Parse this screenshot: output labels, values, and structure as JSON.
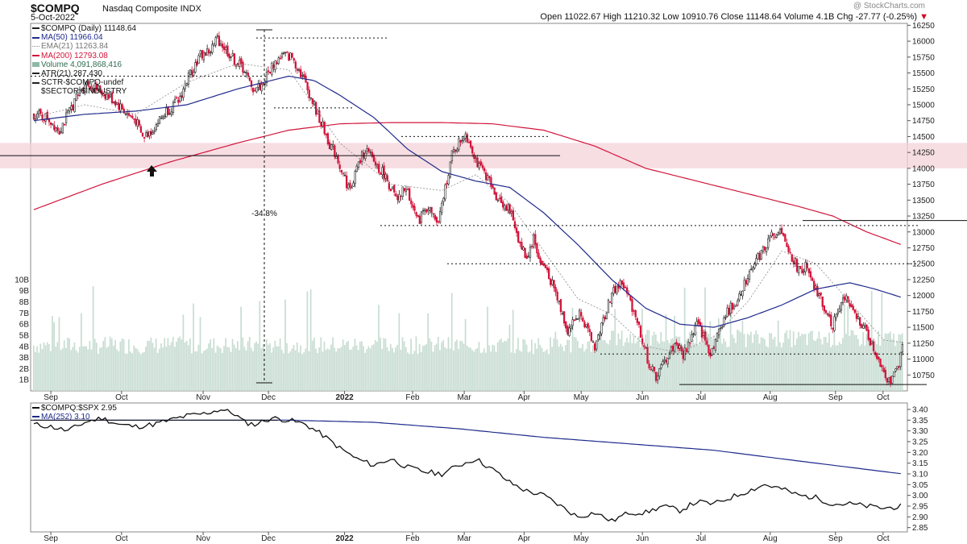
{
  "header": {
    "symbol": "$COMPQ",
    "name": "Nasdaq Composite INDX",
    "date": "5-Oct-2022",
    "watermark": "@ StockCharts.com",
    "ohlc_text": "Open 11022.67  High 11210.32  Low 10910.76  Close 11148.64  Volume 4.1B  Chg -27.77 (-0.25%)",
    "chg_marker": "▼"
  },
  "legend": {
    "main": "$COMPQ (Daily) 11148.64",
    "ma50": "MA(50) 11966.04",
    "ema21": "EMA(21) 11263.84",
    "ma200": "MA(200) 12793.08",
    "volume": "Volume 4,091,868,416",
    "atr": "ATR(21) 287.430",
    "sctr": "SCTR-$COMPQ-undef",
    "sector": "$SECTOR:$INDUSTRY"
  },
  "legend2": {
    "ratio": "$COMPQ:$SPX 2.95",
    "ma252": "MA(252) 3.10"
  },
  "annotation": "-34.8%",
  "colors": {
    "up": "#222222",
    "down": "#d2143a",
    "ma50": "#1f2a8c",
    "ema21": "#999999",
    "ma200": "#d2143a",
    "volume": "#c8ddd3",
    "ratio": "#111111",
    "ma252": "#1f2a8c",
    "zone": "#f3d3d9"
  },
  "chart_data": [
    {
      "type": "candlestick",
      "title": "$COMPQ Nasdaq Composite INDX",
      "x_ticks": [
        "Sep",
        "Oct",
        "Nov",
        "Dec",
        "2022",
        "Feb",
        "Mar",
        "Apr",
        "May",
        "Jun",
        "Jul",
        "Aug",
        "Sep",
        "Oct"
      ],
      "y_ticks": [
        10750,
        11000,
        11250,
        11500,
        11750,
        12000,
        12250,
        12500,
        12750,
        13000,
        13250,
        13500,
        13750,
        14000,
        14250,
        14500,
        14750,
        15000,
        15250,
        15500,
        15750,
        16000,
        16250
      ],
      "ylim": [
        10500,
        16280
      ],
      "close_path": [
        [
          0,
          14850
        ],
        [
          8,
          14800
        ],
        [
          15,
          14600
        ],
        [
          22,
          14950
        ],
        [
          30,
          15350
        ],
        [
          40,
          15200
        ],
        [
          48,
          15050
        ],
        [
          55,
          14850
        ],
        [
          60,
          14750
        ],
        [
          64,
          14480
        ],
        [
          70,
          14620
        ],
        [
          78,
          14900
        ],
        [
          85,
          15050
        ],
        [
          92,
          15500
        ],
        [
          98,
          15780
        ],
        [
          104,
          15850
        ],
        [
          108,
          16050
        ],
        [
          112,
          15900
        ],
        [
          118,
          15700
        ],
        [
          124,
          15550
        ],
        [
          128,
          15250
        ],
        [
          134,
          15300
        ],
        [
          140,
          15600
        ],
        [
          146,
          15780
        ],
        [
          152,
          15750
        ],
        [
          158,
          15450
        ],
        [
          164,
          15050
        ],
        [
          170,
          14650
        ],
        [
          174,
          14380
        ],
        [
          178,
          14200
        ],
        [
          182,
          13900
        ],
        [
          186,
          13650
        ],
        [
          190,
          14000
        ],
        [
          195,
          14300
        ],
        [
          200,
          14100
        ],
        [
          206,
          13900
        ],
        [
          210,
          13700
        ],
        [
          214,
          13450
        ],
        [
          218,
          13700
        ],
        [
          222,
          13500
        ],
        [
          226,
          13150
        ],
        [
          230,
          13400
        ],
        [
          234,
          13300
        ],
        [
          238,
          13100
        ],
        [
          242,
          13700
        ],
        [
          246,
          14200
        ],
        [
          250,
          14400
        ],
        [
          254,
          14550
        ],
        [
          258,
          14300
        ],
        [
          262,
          14000
        ],
        [
          266,
          13900
        ],
        [
          270,
          13650
        ],
        [
          274,
          13500
        ],
        [
          278,
          13400
        ],
        [
          282,
          13200
        ],
        [
          286,
          12800
        ],
        [
          290,
          12600
        ],
        [
          294,
          12900
        ],
        [
          298,
          12500
        ],
        [
          302,
          12400
        ],
        [
          306,
          12100
        ],
        [
          310,
          11800
        ],
        [
          314,
          11450
        ],
        [
          318,
          11600
        ],
        [
          322,
          11750
        ],
        [
          326,
          11400
        ],
        [
          330,
          11200
        ],
        [
          334,
          11500
        ],
        [
          338,
          11900
        ],
        [
          342,
          12100
        ],
        [
          346,
          12200
        ],
        [
          350,
          11950
        ],
        [
          354,
          11700
        ],
        [
          358,
          11300
        ],
        [
          362,
          10900
        ],
        [
          366,
          10720
        ],
        [
          370,
          10900
        ],
        [
          374,
          11100
        ],
        [
          378,
          11250
        ],
        [
          382,
          11050
        ],
        [
          386,
          11300
        ],
        [
          390,
          11550
        ],
        [
          394,
          11350
        ],
        [
          398,
          11100
        ],
        [
          402,
          11350
        ],
        [
          406,
          11650
        ],
        [
          410,
          11800
        ],
        [
          414,
          11950
        ],
        [
          418,
          12200
        ],
        [
          422,
          12450
        ],
        [
          426,
          12600
        ],
        [
          430,
          12750
        ],
        [
          434,
          12950
        ],
        [
          438,
          13050
        ],
        [
          442,
          12800
        ],
        [
          446,
          12600
        ],
        [
          450,
          12400
        ],
        [
          454,
          12450
        ],
        [
          458,
          12150
        ],
        [
          462,
          12000
        ],
        [
          466,
          11750
        ],
        [
          470,
          11550
        ],
        [
          474,
          11850
        ],
        [
          478,
          11950
        ],
        [
          482,
          11700
        ],
        [
          486,
          11600
        ],
        [
          490,
          11400
        ],
        [
          494,
          11150
        ],
        [
          498,
          10950
        ],
        [
          502,
          10700
        ],
        [
          505,
          10650
        ],
        [
          508,
          10850
        ],
        [
          511,
          11148
        ]
      ],
      "volume_unit": "B",
      "volume_ylim": [
        0,
        10.5
      ],
      "volume_ticks": [
        "1B",
        "2B",
        "3B",
        "4B",
        "5B",
        "6B",
        "7B",
        "8B",
        "9B",
        "10B"
      ],
      "series": [
        {
          "name": "MA(50)",
          "values": [
            [
              0,
              14750
            ],
            [
              30,
              14850
            ],
            [
              60,
              14900
            ],
            [
              90,
              15000
            ],
            [
              120,
              15250
            ],
            [
              150,
              15450
            ],
            [
              165,
              15380
            ],
            [
              180,
              15150
            ],
            [
              200,
              14800
            ],
            [
              220,
              14300
            ],
            [
              240,
              13950
            ],
            [
              260,
              13800
            ],
            [
              280,
              13700
            ],
            [
              300,
              13300
            ],
            [
              320,
              12800
            ],
            [
              340,
              12250
            ],
            [
              360,
              11800
            ],
            [
              380,
              11550
            ],
            [
              400,
              11500
            ],
            [
              420,
              11650
            ],
            [
              440,
              11850
            ],
            [
              460,
              12100
            ],
            [
              480,
              12200
            ],
            [
              495,
              12100
            ],
            [
              511,
              11966
            ]
          ]
        },
        {
          "name": "EMA(21)",
          "values": [
            [
              0,
              14800
            ],
            [
              30,
              15000
            ],
            [
              60,
              14850
            ],
            [
              90,
              15350
            ],
            [
              120,
              15650
            ],
            [
              150,
              15550
            ],
            [
              180,
              14400
            ],
            [
              210,
              13750
            ],
            [
              240,
              13650
            ],
            [
              260,
              13900
            ],
            [
              280,
              13450
            ],
            [
              300,
              12700
            ],
            [
              320,
              11950
            ],
            [
              340,
              11700
            ],
            [
              360,
              11200
            ],
            [
              380,
              11100
            ],
            [
              400,
              11350
            ],
            [
              420,
              11900
            ],
            [
              440,
              12700
            ],
            [
              460,
              12500
            ],
            [
              480,
              11900
            ],
            [
              500,
              11300
            ],
            [
              511,
              11264
            ]
          ]
        },
        {
          "name": "MA(200)",
          "values": [
            [
              0,
              13350
            ],
            [
              40,
              13750
            ],
            [
              80,
              14100
            ],
            [
              120,
              14400
            ],
            [
              150,
              14600
            ],
            [
              180,
              14700
            ],
            [
              210,
              14720
            ],
            [
              240,
              14720
            ],
            [
              270,
              14700
            ],
            [
              300,
              14600
            ],
            [
              330,
              14350
            ],
            [
              360,
              14000
            ],
            [
              390,
              13800
            ],
            [
              420,
              13600
            ],
            [
              450,
              13400
            ],
            [
              470,
              13250
            ],
            [
              490,
              13000
            ],
            [
              511,
              12793
            ]
          ]
        }
      ],
      "annotations": [
        "-34.8%"
      ]
    },
    {
      "type": "line",
      "title": "$COMPQ:$SPX",
      "x_ticks": [
        "Sep",
        "Oct",
        "Nov",
        "Dec",
        "2022",
        "Feb",
        "Mar",
        "Apr",
        "May",
        "Jun",
        "Jul",
        "Aug",
        "Sep",
        "Oct"
      ],
      "y_ticks": [
        2.85,
        2.9,
        2.95,
        3.0,
        3.05,
        3.1,
        3.15,
        3.2,
        3.25,
        3.3,
        3.35,
        3.4
      ],
      "ylim": [
        2.83,
        3.43
      ],
      "series": [
        {
          "name": "$COMPQ:$SPX",
          "values": [
            [
              0,
              3.33
            ],
            [
              10,
              3.32
            ],
            [
              20,
              3.3
            ],
            [
              30,
              3.34
            ],
            [
              40,
              3.36
            ],
            [
              50,
              3.33
            ],
            [
              60,
              3.32
            ],
            [
              70,
              3.33
            ],
            [
              80,
              3.35
            ],
            [
              90,
              3.37
            ],
            [
              100,
              3.38
            ],
            [
              110,
              3.4
            ],
            [
              118,
              3.38
            ],
            [
              124,
              3.34
            ],
            [
              130,
              3.33
            ],
            [
              140,
              3.36
            ],
            [
              150,
              3.35
            ],
            [
              160,
              3.33
            ],
            [
              170,
              3.28
            ],
            [
              180,
              3.22
            ],
            [
              190,
              3.17
            ],
            [
              200,
              3.14
            ],
            [
              210,
              3.17
            ],
            [
              220,
              3.13
            ],
            [
              230,
              3.11
            ],
            [
              240,
              3.1
            ],
            [
              250,
              3.14
            ],
            [
              260,
              3.17
            ],
            [
              270,
              3.12
            ],
            [
              280,
              3.06
            ],
            [
              290,
              3.02
            ],
            [
              300,
              3.0
            ],
            [
              310,
              2.95
            ],
            [
              320,
              2.9
            ],
            [
              330,
              2.92
            ],
            [
              340,
              2.88
            ],
            [
              350,
              2.92
            ],
            [
              360,
              2.92
            ],
            [
              370,
              2.95
            ],
            [
              380,
              2.93
            ],
            [
              390,
              2.97
            ],
            [
              400,
              2.96
            ],
            [
              410,
              2.99
            ],
            [
              420,
              3.02
            ],
            [
              430,
              3.05
            ],
            [
              440,
              3.03
            ],
            [
              450,
              3.0
            ],
            [
              460,
              2.99
            ],
            [
              470,
              2.96
            ],
            [
              480,
              2.96
            ],
            [
              490,
              2.95
            ],
            [
              500,
              2.94
            ],
            [
              511,
              2.95
            ]
          ]
        },
        {
          "name": "MA(252)",
          "values": [
            [
              0,
              3.35
            ],
            [
              100,
              3.35
            ],
            [
              150,
              3.35
            ],
            [
              200,
              3.34
            ],
            [
              250,
              3.31
            ],
            [
              300,
              3.27
            ],
            [
              350,
              3.24
            ],
            [
              400,
              3.21
            ],
            [
              450,
              3.16
            ],
            [
              511,
              3.1
            ]
          ]
        }
      ]
    }
  ]
}
